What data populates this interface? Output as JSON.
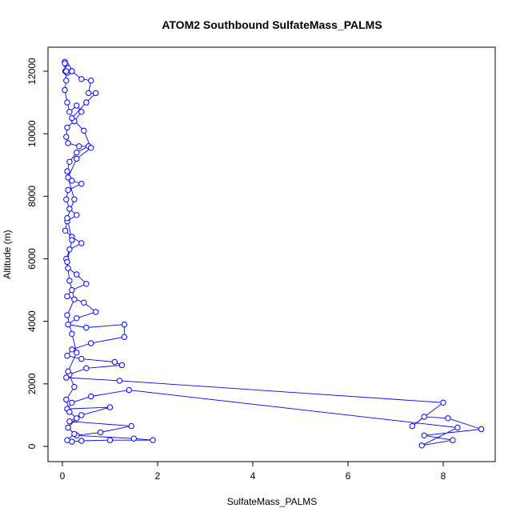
{
  "chart_data": {
    "type": "line",
    "title": "ATOM2 Southbound SulfateMass_PALMS",
    "xlabel": "SulfateMass_PALMS",
    "ylabel": "Altitude (m)",
    "xlim": [
      0,
      9
    ],
    "ylim": [
      0,
      12500
    ],
    "x_ticks": [
      0,
      2,
      4,
      6,
      8
    ],
    "y_ticks": [
      0,
      2000,
      4000,
      6000,
      8000,
      10000,
      12000
    ],
    "x_tick_labels": [
      "0",
      "2",
      "4",
      "6",
      "8"
    ],
    "y_tick_labels": [
      "0",
      "2000",
      "4000",
      "6000",
      "8000",
      "10000",
      "12000"
    ],
    "series": [
      {
        "color": "#0000ff",
        "marker": "open-circle",
        "points": [
          [
            0.05,
            12300
          ],
          [
            0.08,
            12200
          ],
          [
            0.12,
            12100
          ],
          [
            0.2,
            12000
          ],
          [
            0.1,
            11950
          ],
          [
            0.06,
            12000
          ],
          [
            0.08,
            11700
          ],
          [
            0.05,
            11400
          ],
          [
            0.1,
            11000
          ],
          [
            0.15,
            10700
          ],
          [
            0.3,
            10900
          ],
          [
            0.4,
            10700
          ],
          [
            0.25,
            10400
          ],
          [
            0.1,
            10200
          ],
          [
            0.08,
            9900
          ],
          [
            0.12,
            9700
          ],
          [
            0.35,
            9600
          ],
          [
            0.55,
            9600
          ],
          [
            0.3,
            9400
          ],
          [
            0.15,
            9100
          ],
          [
            0.1,
            8800
          ],
          [
            0.2,
            8500
          ],
          [
            0.4,
            8400
          ],
          [
            0.12,
            8200
          ],
          [
            0.08,
            7900
          ],
          [
            0.15,
            7600
          ],
          [
            0.3,
            7400
          ],
          [
            0.1,
            7200
          ],
          [
            0.06,
            6900
          ],
          [
            0.2,
            6700
          ],
          [
            0.4,
            6500
          ],
          [
            0.15,
            6300
          ],
          [
            0.08,
            6000
          ],
          [
            0.12,
            5700
          ],
          [
            0.3,
            5500
          ],
          [
            0.5,
            5200
          ],
          [
            0.2,
            5000
          ],
          [
            0.1,
            4800
          ],
          [
            0.45,
            4600
          ],
          [
            0.7,
            4300
          ],
          [
            0.3,
            4100
          ],
          [
            0.12,
            3900
          ],
          [
            0.5,
            3800
          ],
          [
            1.3,
            3900
          ],
          [
            1.3,
            3500
          ],
          [
            0.6,
            3300
          ],
          [
            0.2,
            3100
          ],
          [
            0.1,
            2900
          ],
          [
            0.4,
            2800
          ],
          [
            1.1,
            2700
          ],
          [
            1.25,
            2600
          ],
          [
            0.5,
            2500
          ],
          [
            0.15,
            2300
          ],
          [
            0.08,
            2200
          ],
          [
            1.2,
            2100
          ],
          [
            8.0,
            1400
          ],
          [
            7.35,
            650
          ],
          [
            7.6,
            950
          ],
          [
            8.1,
            900
          ],
          [
            8.8,
            550
          ],
          [
            7.6,
            350
          ],
          [
            8.2,
            200
          ],
          [
            7.55,
            30
          ],
          [
            8.3,
            600
          ],
          [
            1.4,
            1800
          ],
          [
            0.6,
            1600
          ],
          [
            0.2,
            1400
          ],
          [
            0.1,
            1200
          ],
          [
            1.0,
            1250
          ],
          [
            0.4,
            1000
          ],
          [
            0.15,
            800
          ],
          [
            1.45,
            650
          ],
          [
            0.8,
            450
          ],
          [
            0.3,
            350
          ],
          [
            1.5,
            250
          ],
          [
            1.9,
            200
          ],
          [
            1.0,
            200
          ],
          [
            0.4,
            180
          ],
          [
            0.2,
            150
          ],
          [
            0.1,
            200
          ],
          [
            0.25,
            400
          ],
          [
            0.12,
            600
          ],
          [
            0.3,
            900
          ],
          [
            0.15,
            1100
          ],
          [
            0.08,
            1500
          ],
          [
            0.25,
            1900
          ],
          [
            0.12,
            2400
          ],
          [
            0.3,
            3000
          ],
          [
            0.2,
            3600
          ],
          [
            0.1,
            4200
          ],
          [
            0.25,
            4700
          ],
          [
            0.15,
            5300
          ],
          [
            0.1,
            5900
          ],
          [
            0.2,
            6600
          ],
          [
            0.1,
            7300
          ],
          [
            0.25,
            7900
          ],
          [
            0.12,
            8600
          ],
          [
            0.3,
            9200
          ],
          [
            0.6,
            9550
          ],
          [
            0.45,
            10100
          ],
          [
            0.2,
            10500
          ],
          [
            0.5,
            11000
          ],
          [
            0.7,
            11300
          ],
          [
            0.55,
            11300
          ],
          [
            0.6,
            11700
          ],
          [
            0.4,
            11750
          ],
          [
            0.2,
            12000
          ],
          [
            0.08,
            12000
          ],
          [
            0.05,
            12250
          ]
        ]
      }
    ]
  }
}
